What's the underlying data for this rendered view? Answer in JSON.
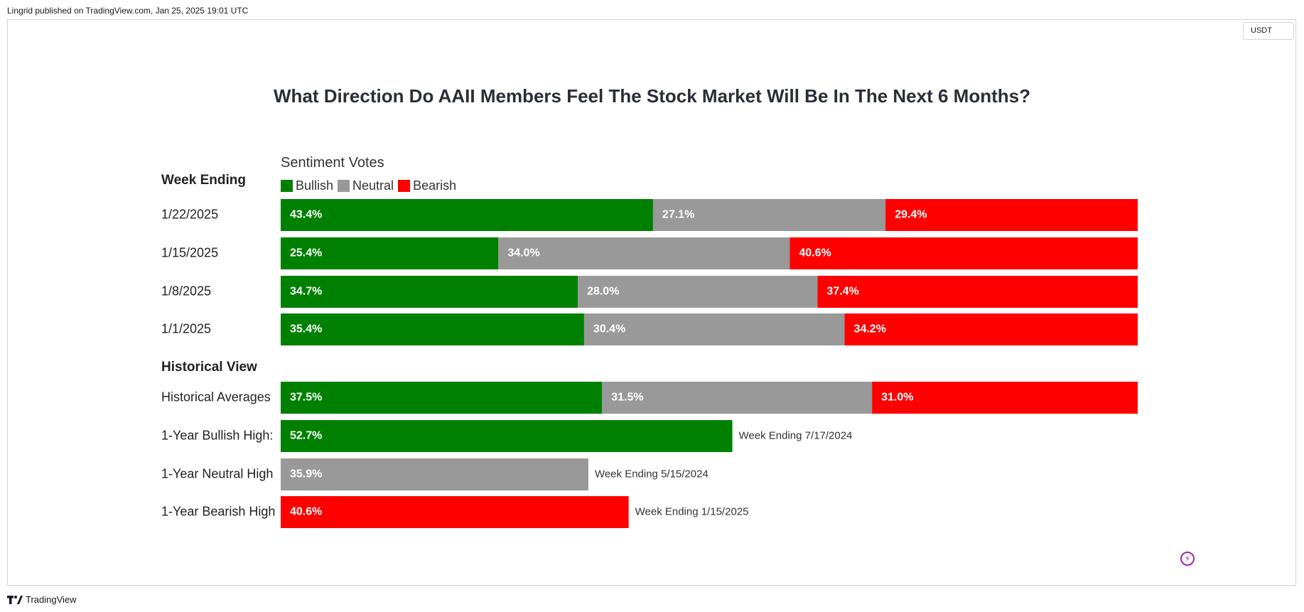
{
  "header": {
    "published": "Lingrid published on TradingView.com, Jan 25, 2025 19:01 UTC"
  },
  "toolbar": {
    "currency": "USDT"
  },
  "footer": {
    "brand": "TradingView"
  },
  "colors": {
    "bullish": "#008000",
    "neutral": "#999999",
    "bearish": "#ff0000"
  },
  "icons": {
    "lightning": "lightning-icon",
    "logo": "tradingview-logo-icon"
  },
  "chart_data": {
    "type": "bar",
    "title": "What Direction Do AAII Members Feel The Stock Market Will Be In The Next 6 Months?",
    "legend_title": "Sentiment Votes",
    "legend_placement": "top-left",
    "series_names": [
      "Bullish",
      "Neutral",
      "Bearish"
    ],
    "section_weekly": "Week Ending",
    "section_historical": "Historical View",
    "weekly": [
      {
        "label": "1/22/2025",
        "values": [
          43.4,
          27.1,
          29.4
        ],
        "value_labels": [
          "43.4%",
          "27.1%",
          "29.4%"
        ]
      },
      {
        "label": "1/15/2025",
        "values": [
          25.4,
          34.0,
          40.6
        ],
        "value_labels": [
          "25.4%",
          "34.0%",
          "40.6%"
        ]
      },
      {
        "label": "1/8/2025",
        "values": [
          34.7,
          28.0,
          37.4
        ],
        "value_labels": [
          "34.7%",
          "28.0%",
          "37.4%"
        ]
      },
      {
        "label": "1/1/2025",
        "values": [
          35.4,
          30.4,
          34.2
        ],
        "value_labels": [
          "35.4%",
          "30.4%",
          "34.2%"
        ]
      }
    ],
    "historical": [
      {
        "label": "Historical Averages",
        "values": [
          37.5,
          31.5,
          31.0
        ],
        "value_labels": [
          "37.5%",
          "31.5%",
          "31.0%"
        ]
      },
      {
        "label": "1-Year Bullish High:",
        "series": "bullish",
        "value": 52.7,
        "value_label": "52.7%",
        "note": "Week Ending 7/17/2024"
      },
      {
        "label": "1-Year Neutral High",
        "series": "neutral",
        "value": 35.9,
        "value_label": "35.9%",
        "note": "Week Ending 5/15/2024"
      },
      {
        "label": "1-Year Bearish High",
        "series": "bearish",
        "value": 40.6,
        "value_label": "40.6%",
        "note": "Week Ending 1/15/2025"
      }
    ]
  }
}
